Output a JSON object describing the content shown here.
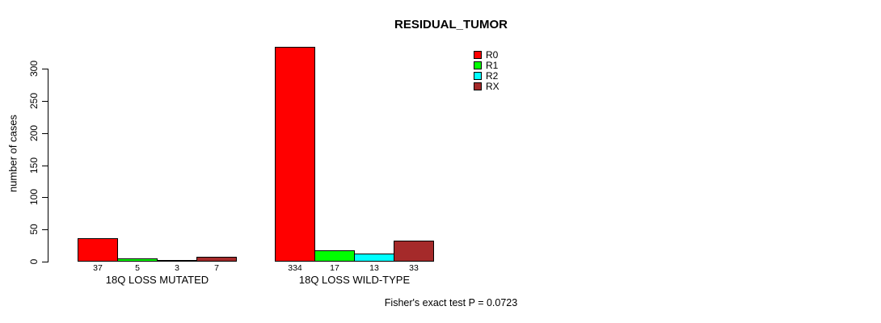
{
  "chart_data": {
    "type": "bar",
    "title": "RESIDUAL_TUMOR",
    "ylabel": "number of cases",
    "xlabel": "",
    "categories": [
      "18Q LOSS MUTATED",
      "18Q LOSS WILD-TYPE"
    ],
    "series": [
      {
        "name": "R0",
        "color": "#FF0000",
        "values": [
          37,
          334
        ]
      },
      {
        "name": "R1",
        "color": "#00FF00",
        "values": [
          5,
          17
        ]
      },
      {
        "name": "R2",
        "color": "#00FFFF",
        "values": [
          3,
          13
        ]
      },
      {
        "name": "RX",
        "color": "#A52A2A",
        "values": [
          7,
          33
        ]
      }
    ],
    "yticks": [
      0,
      50,
      100,
      150,
      200,
      250,
      300
    ],
    "ylim": [
      0,
      334
    ],
    "grid": false,
    "legend_position": "top-right",
    "bar_value_labels_shown_below_axis": true,
    "annotation": "Fisher's exact test P = 0.0723",
    "axis_color": "#000000",
    "background_color": "#FFFFFF"
  }
}
